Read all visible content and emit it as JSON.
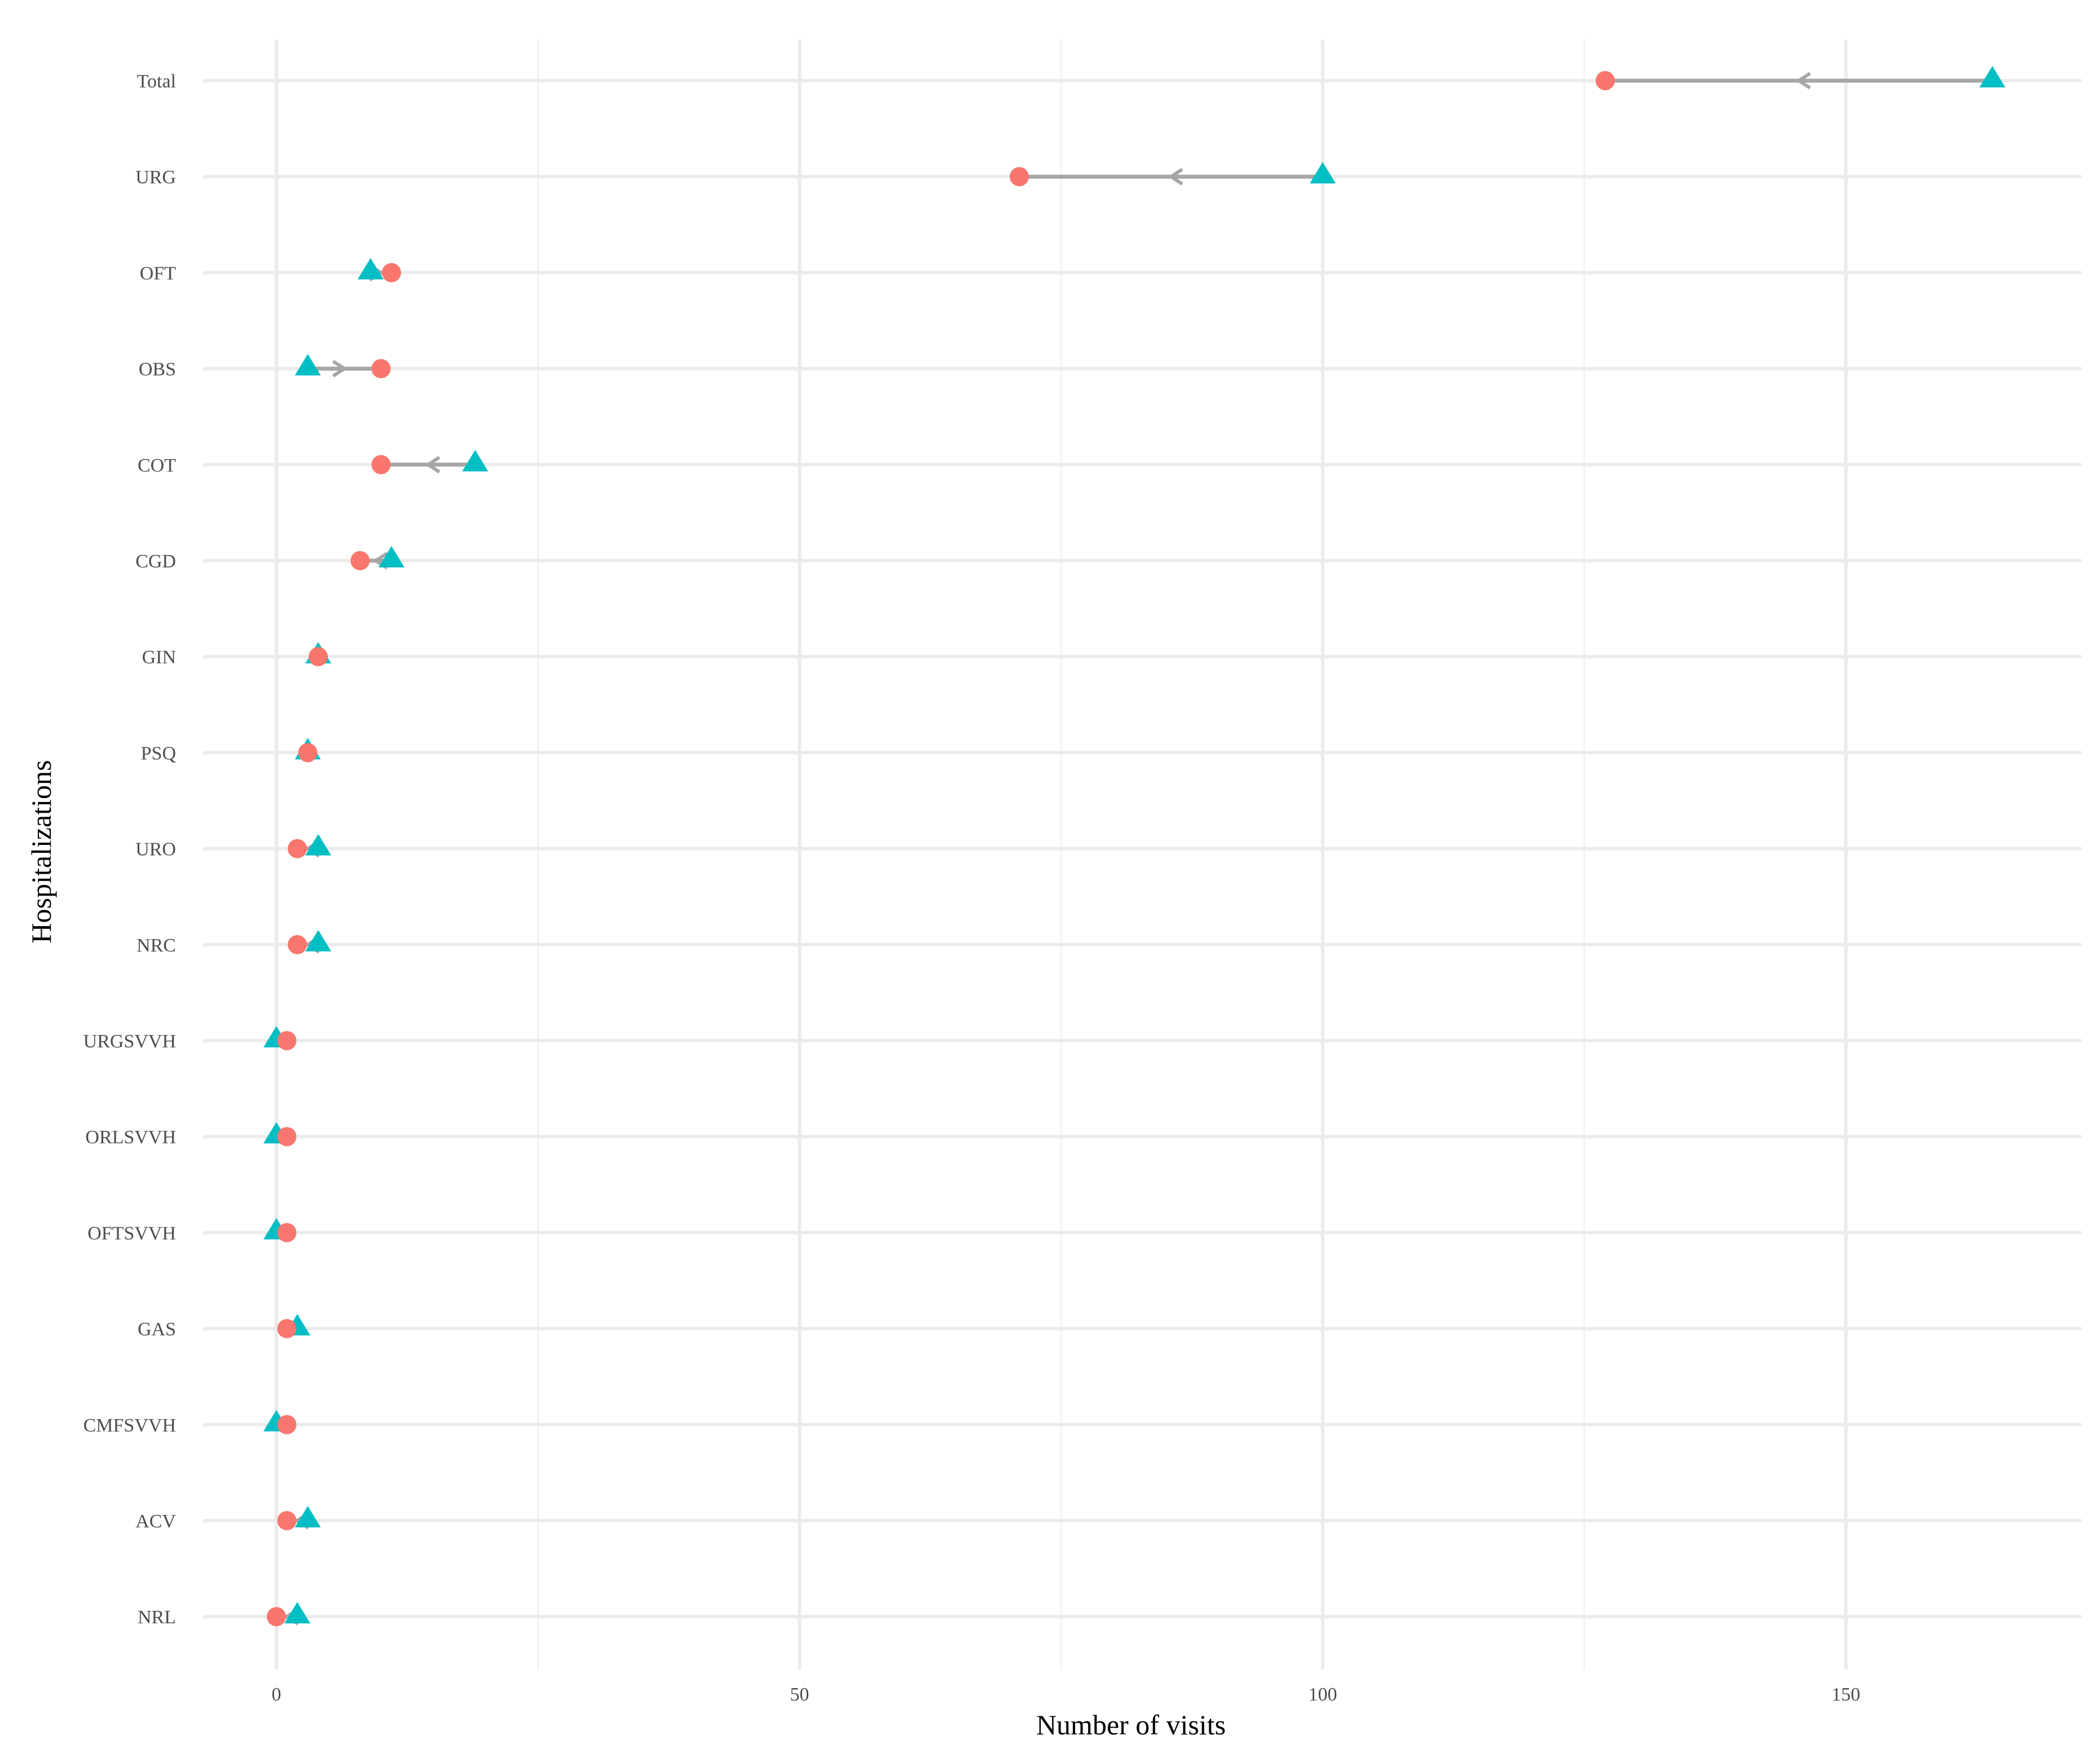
{
  "chart_data": {
    "type": "dumbbell",
    "xlabel": "Number of visits",
    "ylabel": "Hospitalizations",
    "xlim": [
      -11,
      172
    ],
    "xticks": [
      0,
      50,
      100,
      150
    ],
    "xtick_labels": [
      "0",
      "50",
      "100",
      "150"
    ],
    "xminor": [
      25,
      75,
      125
    ],
    "grid": true,
    "categories": [
      "Total",
      "URG",
      "OFT",
      "OBS",
      "COT",
      "CGD",
      "GIN",
      "PSQ",
      "URO",
      "NRC",
      "URGSVVH",
      "ORLSVVH",
      "OFTSVVH",
      "GAS",
      "CMFSVVH",
      "ACV",
      "NRL"
    ],
    "series": [
      {
        "marker": "triangle",
        "color": "#00BFC4",
        "values": [
          164,
          100,
          9,
          3,
          19,
          11,
          4,
          3,
          4,
          4,
          0,
          0,
          0,
          2,
          0,
          3,
          2
        ]
      },
      {
        "marker": "circle",
        "color": "#F8766D",
        "values": [
          127,
          71,
          11,
          10,
          10,
          8,
          4,
          3,
          2,
          2,
          1,
          1,
          1,
          1,
          1,
          1,
          0
        ]
      }
    ],
    "arrow_color": "#a6a6a6",
    "legend": "none"
  }
}
